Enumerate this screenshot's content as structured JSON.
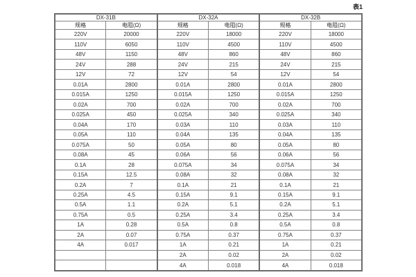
{
  "caption": "表1",
  "table": {
    "groups": [
      {
        "name": "DX-31B",
        "columns": [
          "规格",
          "电阻(Ω)"
        ],
        "rows": [
          [
            "220V",
            "20000"
          ],
          [
            "110V",
            "6050"
          ],
          [
            "48V",
            "1150"
          ],
          [
            "24V",
            "288"
          ],
          [
            "12V",
            "72"
          ],
          [
            "0.01A",
            "2800"
          ],
          [
            "0.015A",
            "1250"
          ],
          [
            "0.02A",
            "700"
          ],
          [
            "0.025A",
            "450"
          ],
          [
            "0.04A",
            "170"
          ],
          [
            "0.05A",
            "110"
          ],
          [
            "0.075A",
            "50"
          ],
          [
            "0.08A",
            "45"
          ],
          [
            "0.1A",
            "28"
          ],
          [
            "0.15A",
            "12.5"
          ],
          [
            "0.2A",
            "7"
          ],
          [
            "0.25A",
            "4.5"
          ],
          [
            "0.5A",
            "1.1"
          ],
          [
            "0.75A",
            "0.5"
          ],
          [
            "1A",
            "0.28"
          ],
          [
            "2A",
            "0.07"
          ],
          [
            "4A",
            "0.017"
          ],
          [
            "",
            ""
          ],
          [
            "",
            ""
          ]
        ]
      },
      {
        "name": "DX-32A",
        "columns": [
          "规格",
          "电阻(Ω)"
        ],
        "rows": [
          [
            "220V",
            "18000"
          ],
          [
            "110V",
            "4500"
          ],
          [
            "48V",
            "860"
          ],
          [
            "24V",
            "215"
          ],
          [
            "12V",
            "54"
          ],
          [
            "0.01A",
            "2800"
          ],
          [
            "0.015A",
            "1250"
          ],
          [
            "0.02A",
            "700"
          ],
          [
            "0.025A",
            "340"
          ],
          [
            "0.03A",
            "110"
          ],
          [
            "0.04A",
            "135"
          ],
          [
            "0.05A",
            "80"
          ],
          [
            "0.06A",
            "56"
          ],
          [
            "0.075A",
            "34"
          ],
          [
            "0.08A",
            "32"
          ],
          [
            "0.1A",
            "21"
          ],
          [
            "0.15A",
            "9.1"
          ],
          [
            "0.2A",
            "5.1"
          ],
          [
            "0.25A",
            "3.4"
          ],
          [
            "0.5A",
            "0.8"
          ],
          [
            "0.75A",
            "0.37"
          ],
          [
            "1A",
            "0.21"
          ],
          [
            "2A",
            "0.02"
          ],
          [
            "4A",
            "0.018"
          ]
        ]
      },
      {
        "name": "DX-32B",
        "columns": [
          "规格",
          "电阻(Ω)"
        ],
        "rows": [
          [
            "220V",
            "18000"
          ],
          [
            "110V",
            "4500"
          ],
          [
            "48V",
            "860"
          ],
          [
            "24V",
            "215"
          ],
          [
            "12V",
            "54"
          ],
          [
            "0.01A",
            "2800"
          ],
          [
            "0.015A",
            "1250"
          ],
          [
            "0.02A",
            "700"
          ],
          [
            "0.025A",
            "340"
          ],
          [
            "0.03A",
            "110"
          ],
          [
            "0.04A",
            "135"
          ],
          [
            "0.05A",
            "80"
          ],
          [
            "0.06A",
            "56"
          ],
          [
            "0.075A",
            "34"
          ],
          [
            "0.08A",
            "32"
          ],
          [
            "0.1A",
            "21"
          ],
          [
            "0.15A",
            "9.1"
          ],
          [
            "0.2A",
            "5.1"
          ],
          [
            "0.25A",
            "3.4"
          ],
          [
            "0.5A",
            "0.8"
          ],
          [
            "0.75A",
            "0.37"
          ],
          [
            "1A",
            "0.21"
          ],
          [
            "2A",
            "0.02"
          ],
          [
            "4A",
            "0.018"
          ]
        ]
      }
    ]
  }
}
